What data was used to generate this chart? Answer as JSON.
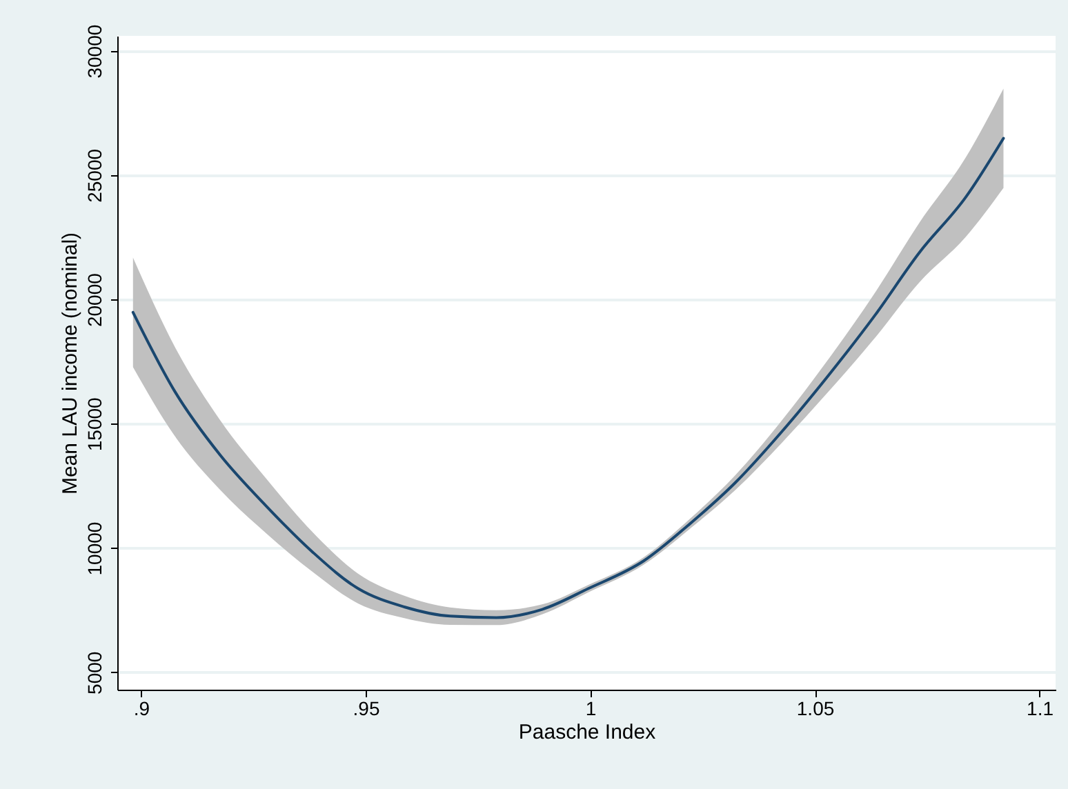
{
  "chart_data": {
    "type": "line",
    "xlabel": "Paasche Index",
    "ylabel": "Mean LAU income (nominal)",
    "xlim": [
      0.8947,
      1.1036
    ],
    "ylim": [
      4300,
      30600
    ],
    "xticks": [
      {
        "value": 0.9,
        "label": ".9"
      },
      {
        "value": 0.95,
        "label": ".95"
      },
      1,
      1.05,
      1.1
    ],
    "yticks": [
      5000,
      10000,
      15000,
      20000,
      25000,
      30000
    ],
    "grid": "y",
    "marker": "none",
    "line_style": "solid",
    "series": [
      {
        "color": "#1a476f",
        "x": [
          0.8982,
          0.9074,
          0.9176,
          0.9278,
          0.9381,
          0.9483,
          0.9586,
          0.9688,
          0.9791,
          0.9893,
          0.9996,
          1.0119,
          1.0221,
          1.0323,
          1.0426,
          1.0528,
          1.0631,
          1.0733,
          1.0836,
          1.092
        ],
        "values": [
          19480,
          16330,
          13740,
          11700,
          9850,
          8370,
          7630,
          7260,
          7200,
          7530,
          8370,
          9480,
          10960,
          12630,
          14670,
          16890,
          19290,
          21890,
          24110,
          26480
        ],
        "lower": [
          17280,
          14530,
          12340,
          10600,
          9050,
          7770,
          7180,
          6910,
          6900,
          7330,
          8220,
          9330,
          10760,
          12330,
          14220,
          16240,
          18390,
          20690,
          22510,
          24480
        ],
        "upper": [
          21680,
          18130,
          15140,
          12800,
          10650,
          8970,
          8080,
          7610,
          7500,
          7730,
          8520,
          9630,
          11160,
          12930,
          15120,
          17540,
          20190,
          23090,
          25710,
          28480
        ]
      }
    ]
  }
}
